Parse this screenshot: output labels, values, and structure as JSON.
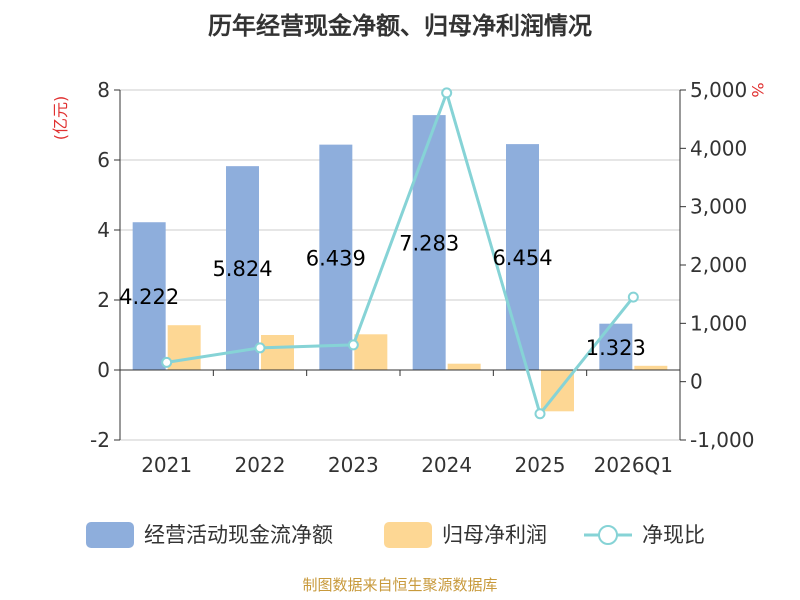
{
  "chart_data": {
    "type": "bar",
    "title": "历年经营现金净额、归母净利润情况",
    "categories": [
      "2021",
      "2022",
      "2023",
      "2024",
      "2025",
      "2026Q1"
    ],
    "y_left": {
      "unit": "(亿元)",
      "ylim": [
        -2,
        8
      ],
      "ticks": [
        -2,
        0,
        2,
        4,
        6,
        8
      ]
    },
    "y_right": {
      "unit": "%",
      "ylim": [
        -1000,
        5000
      ],
      "ticks": [
        -1000,
        0,
        1000,
        2000,
        3000,
        4000,
        5000
      ],
      "tick_labels": [
        "-1,000",
        "0",
        "1,000",
        "2,000",
        "3,000",
        "4,000",
        "5,000"
      ]
    },
    "series": [
      {
        "name": "经营活动现金流净额",
        "type": "bar",
        "axis": "left",
        "color": "#8eaedc",
        "values": [
          4.222,
          5.824,
          6.439,
          7.283,
          6.454,
          1.323
        ],
        "labels": [
          "4.222",
          "5.824",
          "6.439",
          "7.283",
          "6.454",
          "1.323"
        ]
      },
      {
        "name": "归母净利润",
        "type": "bar",
        "axis": "left",
        "color": "#fdd794",
        "values": [
          1.28,
          1.0,
          1.02,
          0.18,
          -1.18,
          0.12
        ]
      },
      {
        "name": "净现比",
        "type": "line",
        "axis": "right",
        "color": "#86d3d6",
        "values": [
          330,
          580,
          630,
          4950,
          -550,
          1450
        ]
      }
    ],
    "source": "制图数据来自恒生聚源数据库"
  }
}
